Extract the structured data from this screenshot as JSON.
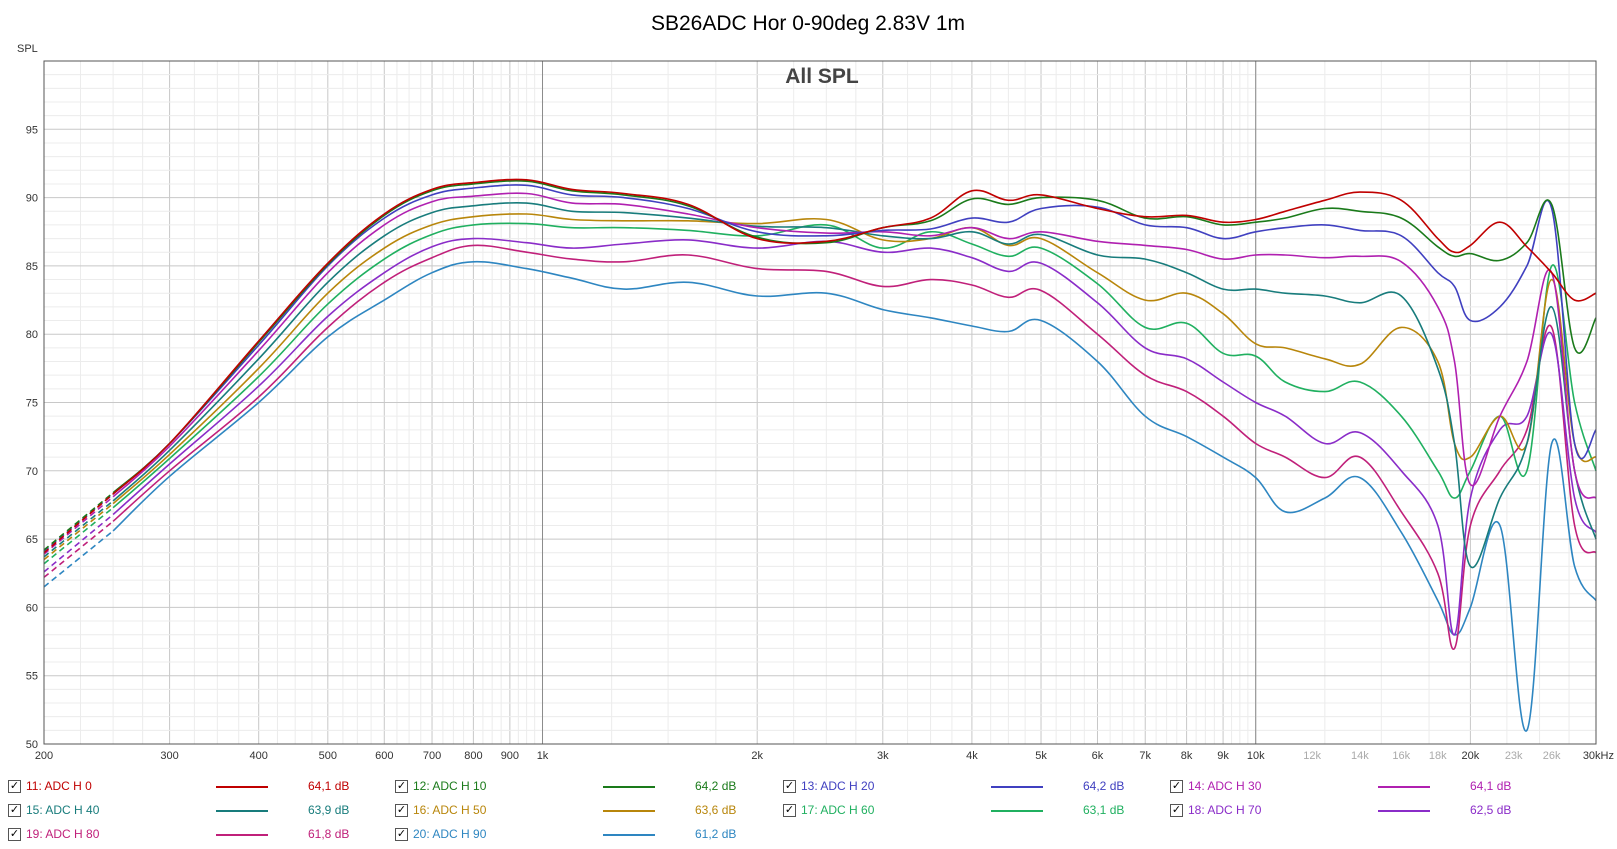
{
  "chart_data": {
    "type": "line",
    "title": "SB26ADC Hor 0-90deg 2.83V 1m",
    "inner_title": "All SPL",
    "ylabel": "SPL",
    "xlabel": "",
    "x_scale": "log",
    "xlim": [
      200,
      30000
    ],
    "ylim": [
      50,
      100
    ],
    "grid": true,
    "x_ticks_major": [
      {
        "v": 200,
        "label": "200"
      },
      {
        "v": 300,
        "label": "300"
      },
      {
        "v": 400,
        "label": "400"
      },
      {
        "v": 500,
        "label": "500"
      },
      {
        "v": 600,
        "label": "600"
      },
      {
        "v": 700,
        "label": "700"
      },
      {
        "v": 800,
        "label": "800"
      },
      {
        "v": 900,
        "label": "900"
      },
      {
        "v": 1000,
        "label": "1k"
      },
      {
        "v": 2000,
        "label": "2k"
      },
      {
        "v": 3000,
        "label": "3k"
      },
      {
        "v": 4000,
        "label": "4k"
      },
      {
        "v": 5000,
        "label": "5k"
      },
      {
        "v": 6000,
        "label": "6k"
      },
      {
        "v": 7000,
        "label": "7k"
      },
      {
        "v": 8000,
        "label": "8k"
      },
      {
        "v": 9000,
        "label": "9k"
      },
      {
        "v": 10000,
        "label": "10k"
      },
      {
        "v": 20000,
        "label": "20k"
      },
      {
        "v": 30000,
        "label": "30kHz"
      }
    ],
    "x_ticks_minor": [
      {
        "v": 12000,
        "label": "12k"
      },
      {
        "v": 14000,
        "label": "14k"
      },
      {
        "v": 16000,
        "label": "16k"
      },
      {
        "v": 18000,
        "label": "18k"
      },
      {
        "v": 23000,
        "label": "23k"
      },
      {
        "v": 26000,
        "label": "26k"
      }
    ],
    "y_ticks": [
      {
        "v": 50,
        "label": "50"
      },
      {
        "v": 55,
        "label": "55"
      },
      {
        "v": 60,
        "label": "60"
      },
      {
        "v": 65,
        "label": "65"
      },
      {
        "v": 70,
        "label": "70"
      },
      {
        "v": 75,
        "label": "75"
      },
      {
        "v": 80,
        "label": "80"
      },
      {
        "v": 85,
        "label": "85"
      },
      {
        "v": 90,
        "label": "90"
      },
      {
        "v": 95,
        "label": "95"
      }
    ],
    "x": [
      200,
      250,
      300,
      400,
      500,
      600,
      700,
      800,
      950,
      1100,
      1300,
      1600,
      2000,
      2500,
      3000,
      3500,
      4000,
      4500,
      5000,
      6000,
      7000,
      8000,
      9000,
      10000,
      11000,
      12500,
      14000,
      16000,
      18000,
      19000,
      20000,
      22000,
      24000,
      26000,
      28000,
      30000
    ],
    "series": [
      {
        "name": "11: ADC H 0",
        "color": "#c00000",
        "spl": "64,1 dB",
        "values": [
          64.0,
          68.3,
          72.0,
          79.5,
          85.2,
          88.8,
          90.6,
          91.1,
          91.3,
          90.6,
          90.3,
          89.5,
          87.0,
          86.8,
          87.8,
          88.5,
          90.5,
          89.8,
          90.2,
          89.2,
          88.6,
          88.7,
          88.2,
          88.4,
          89.0,
          89.8,
          90.4,
          89.8,
          87.0,
          86.0,
          86.5,
          88.2,
          86.4,
          84.5,
          82.5,
          83.0
        ]
      },
      {
        "name": "12: ADC H 10",
        "color": "#1a7a1a",
        "spl": "64,2 dB",
        "values": [
          64.2,
          68.4,
          72.0,
          79.4,
          85.1,
          88.7,
          90.5,
          91.0,
          91.2,
          90.5,
          90.2,
          89.4,
          87.1,
          86.7,
          87.8,
          88.3,
          89.9,
          89.5,
          90.0,
          89.8,
          88.5,
          88.6,
          88.0,
          88.2,
          88.5,
          89.2,
          89.0,
          88.5,
          86.4,
          85.7,
          85.9,
          85.4,
          86.7,
          89.5,
          79.0,
          81.2
        ]
      },
      {
        "name": "13: ADC H 20",
        "color": "#4040c0",
        "spl": "64,2 dB",
        "values": [
          64.1,
          68.3,
          72.0,
          79.2,
          85.0,
          88.5,
          90.2,
          90.7,
          90.9,
          90.2,
          90.0,
          89.2,
          87.5,
          87.2,
          87.6,
          87.7,
          88.5,
          88.2,
          89.2,
          89.3,
          88.0,
          87.8,
          87.0,
          87.5,
          87.8,
          88.0,
          87.6,
          87.2,
          84.5,
          83.5,
          81.0,
          82.0,
          85.0,
          89.2,
          72.0,
          73.0
        ]
      },
      {
        "name": "14: ADC H 30",
        "color": "#b020b0",
        "spl": "64,1 dB",
        "values": [
          63.9,
          68.1,
          71.8,
          78.8,
          84.5,
          88.0,
          89.7,
          90.1,
          90.3,
          89.6,
          89.5,
          88.8,
          87.8,
          87.4,
          87.5,
          87.2,
          87.8,
          87.0,
          87.5,
          86.8,
          86.5,
          86.2,
          85.5,
          85.8,
          85.8,
          85.6,
          85.7,
          85.3,
          82.0,
          78.0,
          69.0,
          74.0,
          78.0,
          84.5,
          70.0,
          68.0
        ]
      },
      {
        "name": "15: ADC H 40",
        "color": "#187c7c",
        "spl": "63,9 dB",
        "values": [
          63.7,
          67.8,
          71.5,
          78.2,
          83.8,
          87.2,
          88.9,
          89.4,
          89.6,
          89.0,
          88.9,
          88.5,
          87.9,
          87.8,
          87.2,
          87.0,
          87.5,
          86.6,
          87.3,
          85.8,
          85.5,
          84.5,
          83.3,
          83.3,
          83.0,
          82.8,
          82.3,
          82.8,
          77.5,
          72.0,
          63.0,
          68.0,
          72.0,
          82.0,
          70.0,
          65.0
        ]
      },
      {
        "name": "16: ADC H 50",
        "color": "#b8860b",
        "spl": "63,6 dB",
        "values": [
          63.5,
          67.6,
          71.2,
          77.5,
          83.0,
          86.3,
          88.0,
          88.6,
          88.8,
          88.4,
          88.3,
          88.3,
          88.1,
          88.4,
          86.9,
          87.0,
          87.8,
          86.5,
          87.0,
          84.5,
          82.5,
          83.0,
          81.5,
          79.3,
          79.0,
          78.2,
          77.8,
          80.5,
          78.0,
          72.0,
          71.0,
          74.0,
          72.0,
          84.0,
          72.0,
          71.0
        ]
      },
      {
        "name": "17: ADC H 60",
        "color": "#20b060",
        "spl": "63,1 dB",
        "values": [
          63.2,
          67.3,
          70.9,
          76.9,
          82.2,
          85.5,
          87.3,
          88.0,
          88.1,
          87.8,
          87.8,
          87.6,
          87.2,
          88.0,
          86.3,
          87.5,
          86.6,
          85.7,
          86.3,
          83.7,
          80.5,
          80.8,
          78.6,
          78.4,
          76.5,
          75.8,
          76.5,
          74.0,
          70.0,
          68.0,
          70.0,
          74.0,
          70.0,
          85.0,
          75.0,
          70.0
        ]
      },
      {
        "name": "18: ADC H 70",
        "color": "#8a2cc8",
        "spl": "62,5 dB",
        "values": [
          62.6,
          66.8,
          70.5,
          76.2,
          81.3,
          84.5,
          86.4,
          87.0,
          86.7,
          86.3,
          86.6,
          86.9,
          86.3,
          86.8,
          86.0,
          86.3,
          85.6,
          84.6,
          85.2,
          82.3,
          79.0,
          78.2,
          76.5,
          75.0,
          74.0,
          72.0,
          72.8,
          70.0,
          66.0,
          58.0,
          68.0,
          73.0,
          74.0,
          80.0,
          68.0,
          65.5
        ]
      },
      {
        "name": "19: ADC H 80",
        "color": "#c0207a",
        "spl": "61,8 dB",
        "values": [
          62.2,
          66.3,
          70.0,
          75.4,
          80.5,
          83.8,
          85.6,
          86.5,
          86.0,
          85.5,
          85.3,
          85.8,
          84.8,
          84.6,
          83.5,
          84.0,
          83.6,
          82.7,
          83.2,
          80.0,
          77.0,
          75.8,
          74.0,
          72.0,
          71.0,
          69.5,
          71.0,
          67.0,
          62.5,
          57.0,
          66.0,
          70.0,
          73.0,
          80.5,
          66.0,
          64.0
        ]
      },
      {
        "name": "20: ADC H 90",
        "color": "#2e86c1",
        "spl": "61,2 dB",
        "values": [
          61.5,
          65.6,
          69.6,
          75.0,
          79.8,
          82.5,
          84.5,
          85.3,
          84.8,
          84.1,
          83.3,
          83.8,
          82.8,
          83.0,
          81.8,
          81.2,
          80.6,
          80.2,
          81.0,
          78.0,
          74.0,
          72.5,
          71.0,
          69.5,
          67.0,
          68.0,
          69.5,
          65.5,
          60.5,
          58.0,
          60.0,
          66.0,
          51.0,
          72.0,
          63.0,
          60.5
        ]
      }
    ]
  }
}
